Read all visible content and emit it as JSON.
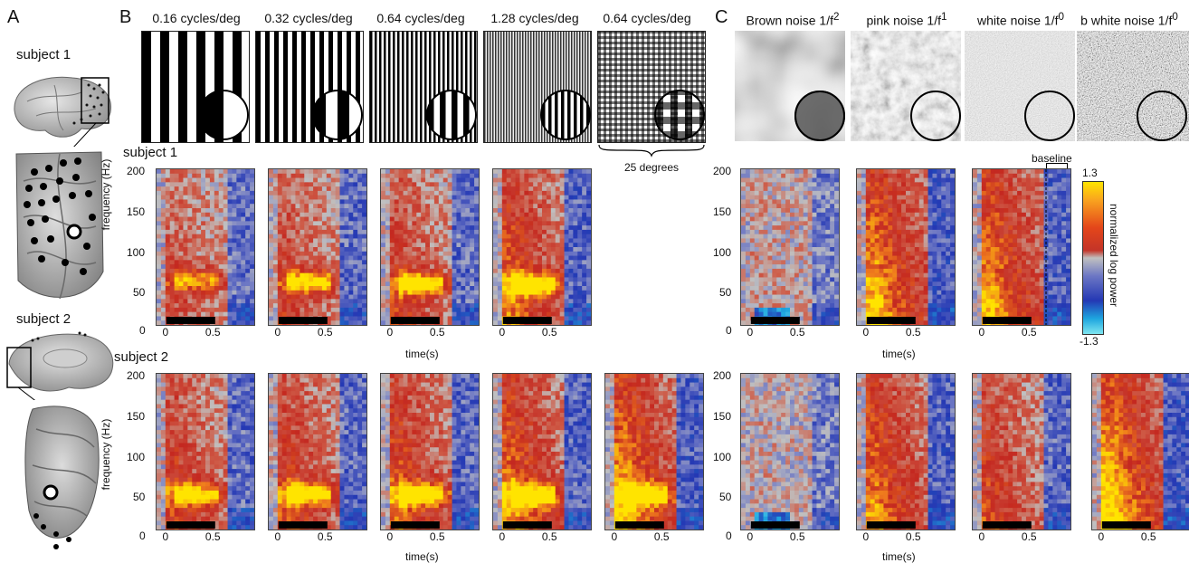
{
  "panel_labels": {
    "a": "A",
    "b": "B",
    "c": "C"
  },
  "subjects": {
    "s1": "subject 1",
    "s2": "subject 2"
  },
  "grating_titles": [
    "0.16 cycles/deg",
    "0.32 cycles/deg",
    "0.64 cycles/deg",
    "1.28 cycles/deg",
    "0.64 cycles/deg"
  ],
  "noise_titles": [
    {
      "base": "Brown noise 1/f",
      "exp": "2"
    },
    {
      "base": "pink noise 1/f",
      "exp": "1"
    },
    {
      "base": "white noise 1/f",
      "exp": "0"
    },
    {
      "base": "b white noise 1/f",
      "exp": "0"
    }
  ],
  "size_label": "25 degrees",
  "baseline_label": "baseline",
  "yaxis_label": "frequency (Hz)",
  "xaxis_label": "time(s)",
  "yticks": [
    "200",
    "150",
    "100",
    "50",
    "0"
  ],
  "xticks": [
    "0",
    "0.5"
  ],
  "colorbar": {
    "label": "normalized log power",
    "max": "1.3",
    "min": "-1.3"
  },
  "chart_data": {
    "type": "heatmap",
    "x_unit": "time(s)",
    "y_unit": "frequency (Hz)",
    "xlim": [
      -0.1,
      0.9
    ],
    "ylim": [
      0,
      200
    ],
    "clim": [
      -1.3,
      1.3
    ],
    "stimulus_period": [
      0,
      0.5
    ],
    "panels": [
      {
        "panel": "B",
        "subject": "subject 1",
        "stimulus": "0.16 cycles/deg",
        "gamma": 0.9,
        "broadband": 0.35,
        "gamma_center": 57
      },
      {
        "panel": "B",
        "subject": "subject 1",
        "stimulus": "0.32 cycles/deg",
        "gamma": 1.1,
        "broadband": 0.45,
        "gamma_center": 55
      },
      {
        "panel": "B",
        "subject": "subject 1",
        "stimulus": "0.64 cycles/deg",
        "gamma": 1.2,
        "broadband": 0.5,
        "gamma_center": 53
      },
      {
        "panel": "B",
        "subject": "subject 1",
        "stimulus": "1.28 cycles/deg",
        "gamma": 1.3,
        "broadband": 0.75,
        "gamma_center": 52
      },
      {
        "panel": "C",
        "subject": "subject 1",
        "stimulus": "Brown noise 1/f2",
        "gamma": 0.0,
        "broadband": 0.1,
        "gamma_center": 0
      },
      {
        "panel": "C",
        "subject": "subject 1",
        "stimulus": "pink noise 1/f1",
        "gamma": 0.0,
        "broadband": 1.0,
        "gamma_center": 0
      },
      {
        "panel": "C",
        "subject": "subject 1",
        "stimulus": "white noise 1/f0",
        "gamma": 0.0,
        "broadband": 0.95,
        "gamma_center": 0
      },
      {
        "panel": "B",
        "subject": "subject 2",
        "stimulus": "0.16 cycles/deg",
        "gamma": 1.1,
        "broadband": 0.55,
        "gamma_center": 45
      },
      {
        "panel": "B",
        "subject": "subject 2",
        "stimulus": "0.32 cycles/deg",
        "gamma": 1.2,
        "broadband": 0.6,
        "gamma_center": 45
      },
      {
        "panel": "B",
        "subject": "subject 2",
        "stimulus": "0.64 cycles/deg",
        "gamma": 1.3,
        "broadband": 0.7,
        "gamma_center": 45
      },
      {
        "panel": "B",
        "subject": "subject 2",
        "stimulus": "1.28 cycles/deg",
        "gamma": 1.3,
        "broadband": 0.85,
        "gamma_center": 43
      },
      {
        "panel": "B",
        "subject": "subject 2",
        "stimulus": "0.64 cycles/deg",
        "gamma": 1.1,
        "broadband": 1.0,
        "gamma_center": 45
      },
      {
        "panel": "C",
        "subject": "subject 2",
        "stimulus": "Brown noise 1/f2",
        "gamma": 0.0,
        "broadband": 0.05,
        "gamma_center": 0
      },
      {
        "panel": "C",
        "subject": "subject 2",
        "stimulus": "pink noise 1/f1",
        "gamma": 0.0,
        "broadband": 0.85,
        "gamma_center": 0
      },
      {
        "panel": "C",
        "subject": "subject 2",
        "stimulus": "white noise 1/f0",
        "gamma": 0.0,
        "broadband": 0.6,
        "gamma_center": 0
      },
      {
        "panel": "C",
        "subject": "subject 2",
        "stimulus": "b white noise 1/f0",
        "gamma": 0.0,
        "broadband": 1.15,
        "gamma_center": 0
      }
    ]
  }
}
